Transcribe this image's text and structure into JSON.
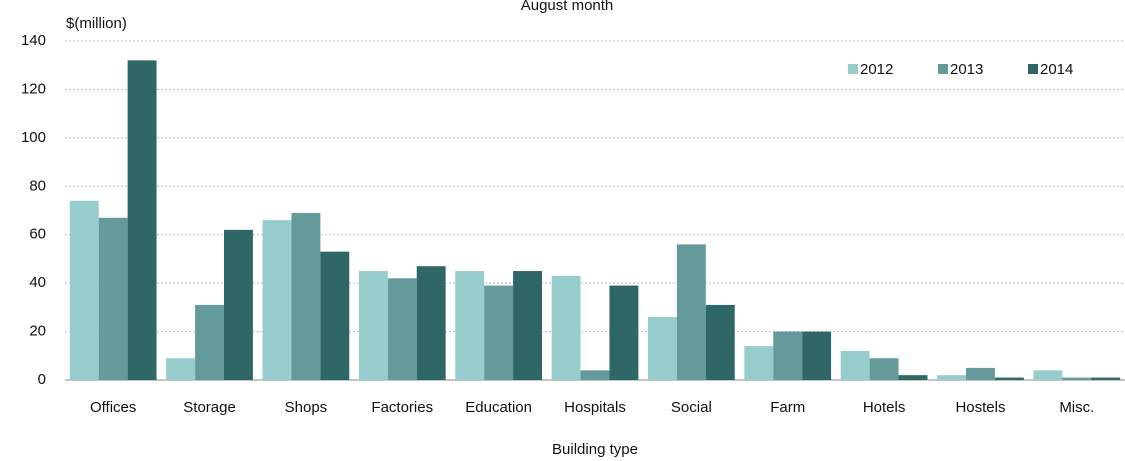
{
  "chart_data": {
    "type": "bar",
    "title": "August month",
    "y_label": "$(million)",
    "x_label": "Building type",
    "categories": [
      "Offices",
      "Storage",
      "Shops",
      "Factories",
      "Education",
      "Hospitals",
      "Social",
      "Farm",
      "Hotels",
      "Hostels",
      "Misc."
    ],
    "series": [
      {
        "name": "2012",
        "color": "#96cccc",
        "values": [
          74,
          9,
          66,
          45,
          45,
          43,
          26,
          14,
          12,
          2,
          4
        ]
      },
      {
        "name": "2013",
        "color": "#649a9a",
        "values": [
          67,
          31,
          69,
          42,
          39,
          4,
          56,
          20,
          9,
          5,
          1
        ]
      },
      {
        "name": "2014",
        "color": "#2f6666",
        "values": [
          132,
          62,
          53,
          47,
          45,
          39,
          31,
          20,
          2,
          1,
          1
        ]
      }
    ],
    "ylim": [
      0,
      140
    ],
    "yticks": [
      0,
      20,
      40,
      60,
      80,
      100,
      120,
      140
    ],
    "grid": true,
    "legend": "top-right"
  }
}
